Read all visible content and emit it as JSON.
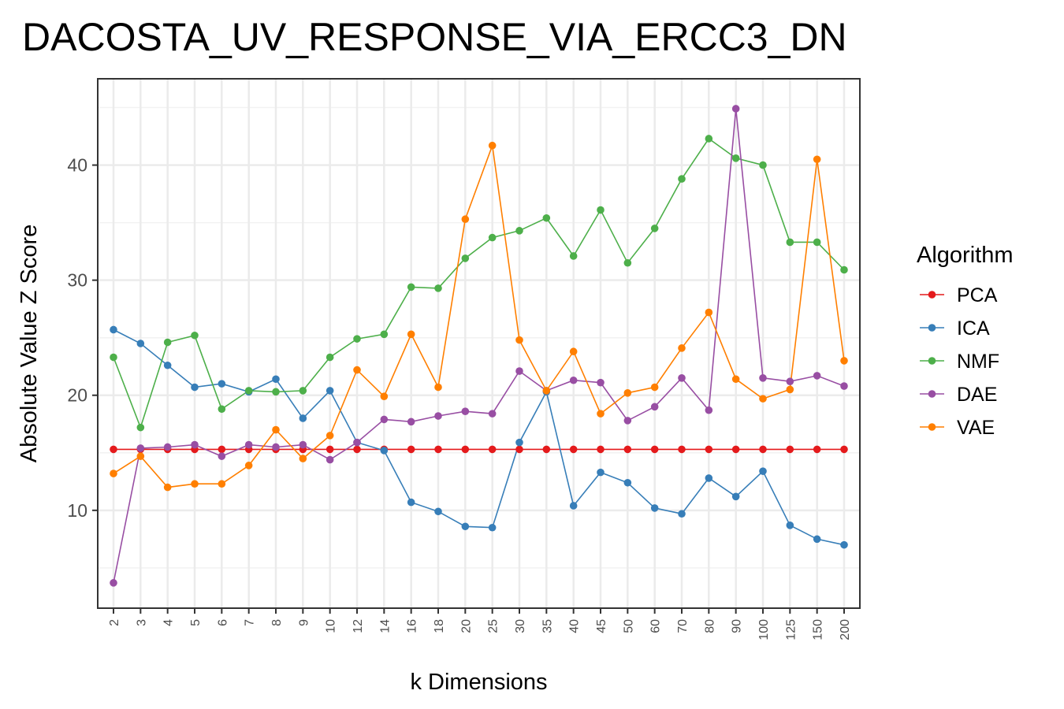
{
  "chart_data": {
    "type": "line",
    "title": "DACOSTA_UV_RESPONSE_VIA_ERCC3_DN",
    "xlabel": "k Dimensions",
    "ylabel": "Absolute Value Z Score",
    "categories": [
      "2",
      "3",
      "4",
      "5",
      "6",
      "7",
      "8",
      "9",
      "10",
      "12",
      "14",
      "16",
      "18",
      "20",
      "25",
      "30",
      "35",
      "40",
      "45",
      "50",
      "60",
      "70",
      "80",
      "90",
      "100",
      "125",
      "150",
      "200"
    ],
    "yticks": [
      10,
      20,
      30,
      40
    ],
    "ylim": [
      1.5,
      47.5
    ],
    "grid": true,
    "legend": {
      "title": "Algorithm",
      "position": "right"
    },
    "series": [
      {
        "name": "PCA",
        "color": "#e41a1c",
        "values": [
          15.3,
          15.3,
          15.3,
          15.3,
          15.3,
          15.3,
          15.3,
          15.3,
          15.3,
          15.3,
          15.3,
          15.3,
          15.3,
          15.3,
          15.3,
          15.3,
          15.3,
          15.3,
          15.3,
          15.3,
          15.3,
          15.3,
          15.3,
          15.3,
          15.3,
          15.3,
          15.3,
          15.3
        ]
      },
      {
        "name": "ICA",
        "color": "#377eb8",
        "values": [
          25.7,
          24.5,
          22.6,
          20.7,
          21.0,
          20.3,
          21.4,
          18.0,
          20.4,
          15.9,
          15.2,
          10.7,
          9.9,
          8.6,
          8.5,
          15.9,
          20.3,
          10.4,
          13.3,
          12.4,
          10.2,
          9.7,
          12.8,
          11.2,
          13.4,
          8.7,
          7.5,
          7.0
        ]
      },
      {
        "name": "NMF",
        "color": "#4daf4a",
        "values": [
          23.3,
          17.2,
          24.6,
          25.2,
          18.8,
          20.4,
          20.3,
          20.4,
          23.3,
          24.9,
          25.3,
          29.4,
          29.3,
          31.9,
          33.7,
          34.3,
          35.4,
          32.1,
          36.1,
          31.5,
          34.5,
          38.8,
          42.3,
          40.6,
          40.0,
          33.3,
          33.3,
          30.9
        ]
      },
      {
        "name": "DAE",
        "color": "#984ea3",
        "values": [
          3.7,
          15.4,
          15.5,
          15.7,
          14.7,
          15.7,
          15.5,
          15.7,
          14.4,
          15.9,
          17.9,
          17.7,
          18.2,
          18.6,
          18.4,
          22.1,
          20.4,
          21.3,
          21.1,
          17.8,
          19.0,
          21.5,
          18.7,
          44.9,
          21.5,
          21.2,
          21.7,
          20.8
        ]
      },
      {
        "name": "VAE",
        "color": "#ff7f00",
        "values": [
          13.2,
          14.7,
          12.0,
          12.3,
          12.3,
          13.9,
          17.0,
          14.5,
          16.5,
          22.2,
          19.9,
          25.3,
          20.7,
          35.3,
          41.7,
          24.8,
          20.4,
          23.8,
          18.4,
          20.2,
          20.7,
          24.1,
          27.2,
          21.4,
          19.7,
          20.5,
          40.5,
          23.0
        ]
      }
    ]
  }
}
